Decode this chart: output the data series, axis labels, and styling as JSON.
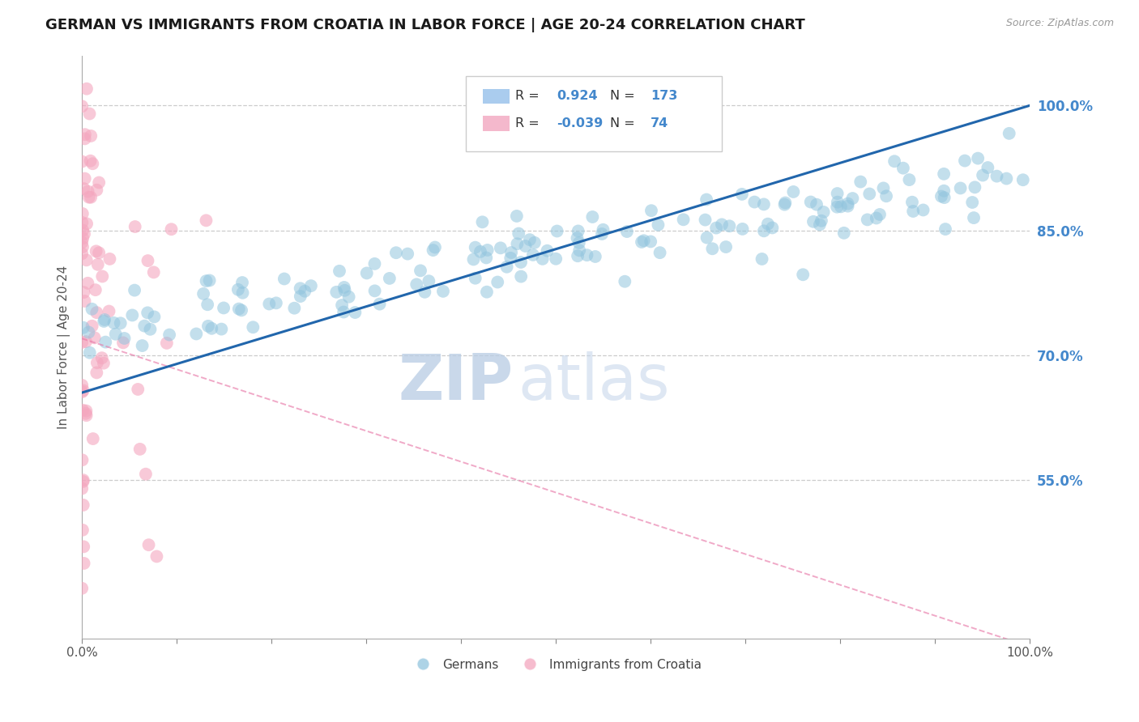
{
  "title": "GERMAN VS IMMIGRANTS FROM CROATIA IN LABOR FORCE | AGE 20-24 CORRELATION CHART",
  "source": "Source: ZipAtlas.com",
  "ylabel": "In Labor Force | Age 20-24",
  "xmin": 0.0,
  "xmax": 1.0,
  "ymin": 0.36,
  "ymax": 1.06,
  "yticks": [
    0.55,
    0.7,
    0.85,
    1.0
  ],
  "ytick_labels": [
    "55.0%",
    "70.0%",
    "85.0%",
    "100.0%"
  ],
  "blue_R": 0.924,
  "blue_N": 173,
  "pink_R": -0.039,
  "pink_N": 74,
  "blue_color": "#92c5de",
  "pink_color": "#f4a6be",
  "blue_line_color": "#2166ac",
  "pink_line_color": "#e87caa",
  "legend_label_blue": "Germans",
  "legend_label_pink": "Immigrants from Croatia",
  "watermark_zip": "ZIP",
  "watermark_atlas": "atlas",
  "background_color": "#ffffff",
  "grid_color": "#cccccc",
  "title_color": "#1a1a1a",
  "title_fontsize": 13,
  "axis_label_color": "#555555",
  "right_tick_color": "#4488cc",
  "legend_R_color": "#4488cc",
  "legend_N_color": "#4488cc"
}
